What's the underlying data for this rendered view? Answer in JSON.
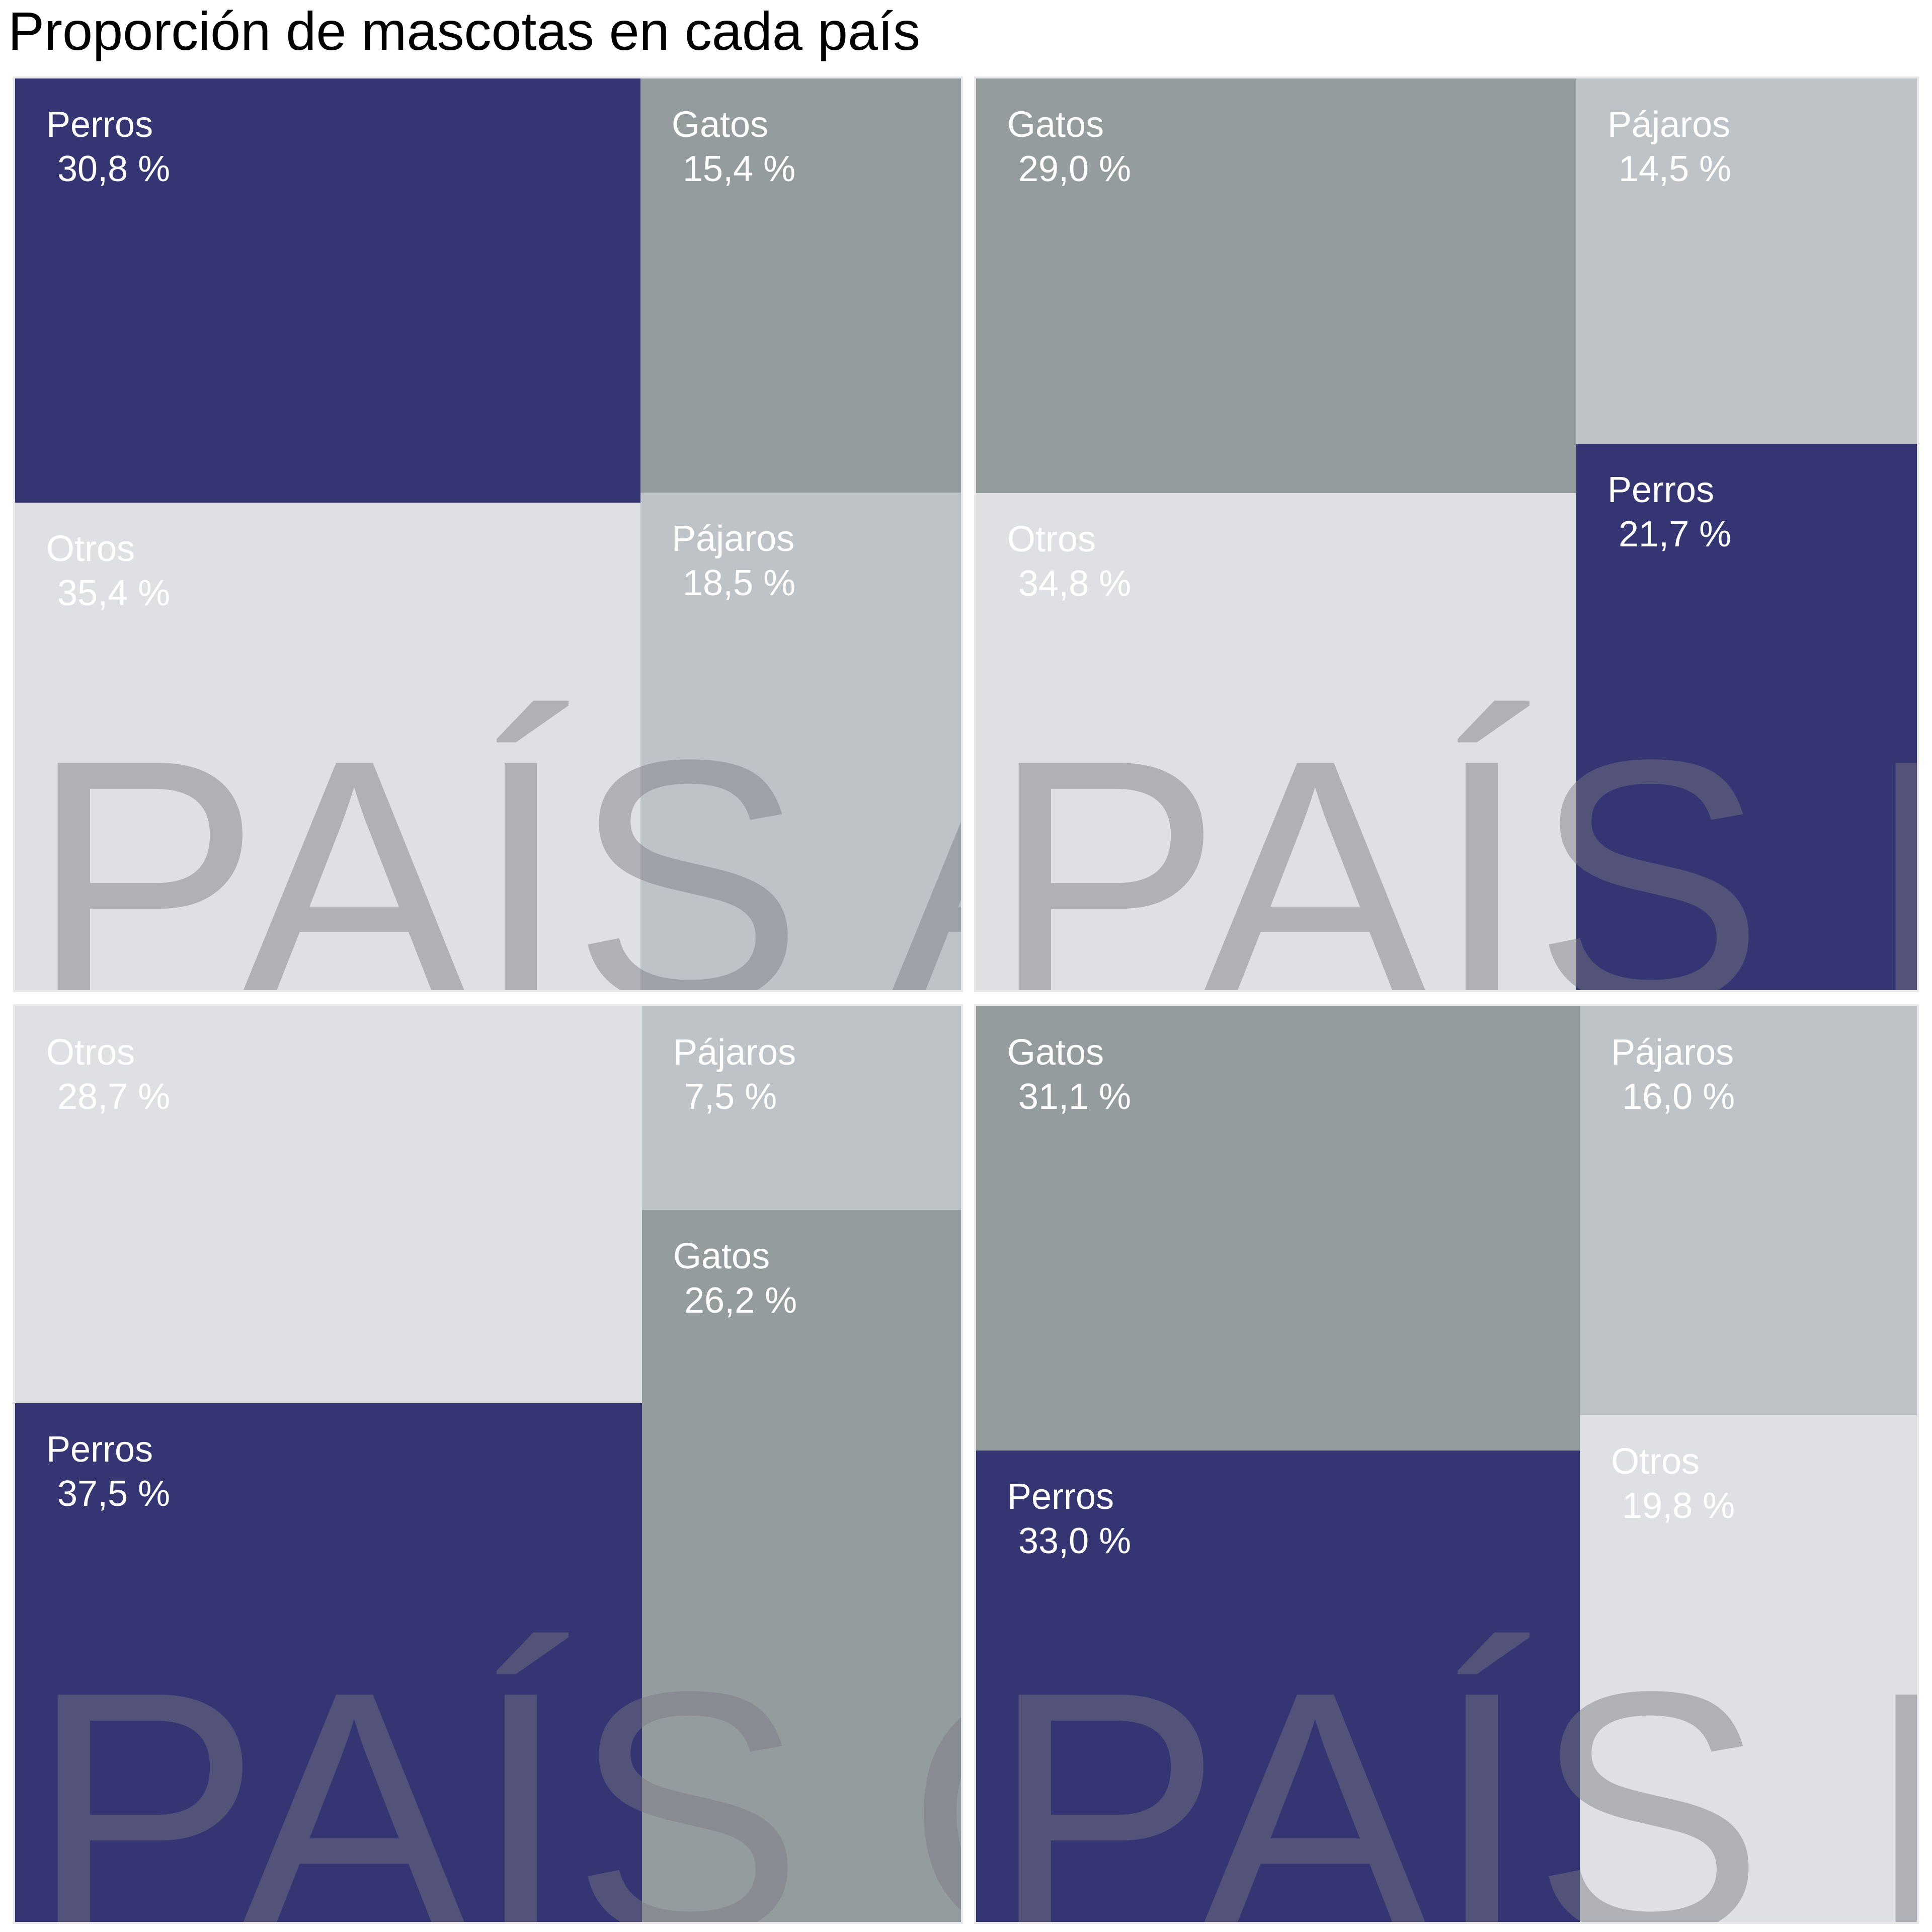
{
  "title": "Proporción de mascotas en cada país",
  "colors": {
    "Perros": "#353573",
    "Gatos": "#959c9e",
    "Pájaros": "#bec3c7",
    "Otros": "#dfe0e3"
  },
  "chart_data": {
    "type": "treemap",
    "title": "Proporción de mascotas en cada país",
    "unit": "%",
    "panels": [
      {
        "name": "PAÍS A",
        "items": [
          {
            "label": "Perros",
            "value": 30.8,
            "display": "30,8 %"
          },
          {
            "label": "Gatos",
            "value": 15.4,
            "display": "15,4 %"
          },
          {
            "label": "Otros",
            "value": 35.4,
            "display": "35,4 %"
          },
          {
            "label": "Pájaros",
            "value": 18.5,
            "display": "18,5 %"
          }
        ]
      },
      {
        "name": "PAÍS B",
        "items": [
          {
            "label": "Gatos",
            "value": 29.0,
            "display": "29,0 %"
          },
          {
            "label": "Pájaros",
            "value": 14.5,
            "display": "14,5 %"
          },
          {
            "label": "Otros",
            "value": 34.8,
            "display": "34,8 %"
          },
          {
            "label": "Perros",
            "value": 21.7,
            "display": "21,7 %"
          }
        ]
      },
      {
        "name": "PAÍS C",
        "items": [
          {
            "label": "Otros",
            "value": 28.7,
            "display": "28,7 %"
          },
          {
            "label": "Pájaros",
            "value": 7.5,
            "display": "7,5 %"
          },
          {
            "label": "Perros",
            "value": 37.5,
            "display": "37,5 %"
          },
          {
            "label": "Gatos",
            "value": 26.2,
            "display": "26,2 %"
          }
        ]
      },
      {
        "name": "PAÍS D",
        "items": [
          {
            "label": "Gatos",
            "value": 31.1,
            "display": "31,1 %"
          },
          {
            "label": "Pájaros",
            "value": 16.0,
            "display": "16,0 %"
          },
          {
            "label": "Perros",
            "value": 33.0,
            "display": "33,0 %"
          },
          {
            "label": "Otros",
            "value": 19.8,
            "display": "19,8 %"
          }
        ]
      }
    ]
  }
}
